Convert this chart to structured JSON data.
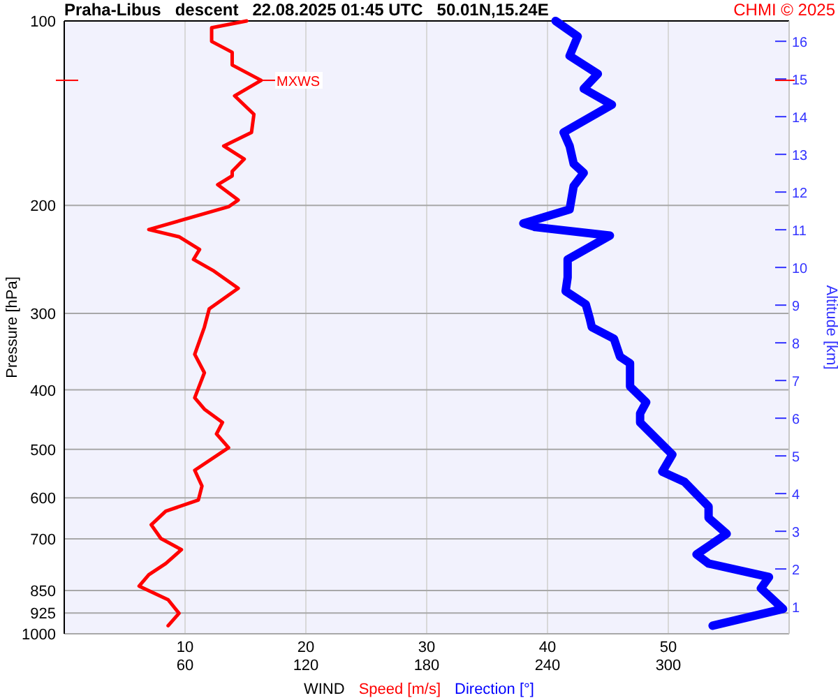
{
  "chart_data": {
    "type": "line",
    "orientation": "horizontal",
    "title": "Praha-Libus   descent   22.08.2025 01:45 UTC   50.01N,15.24E",
    "xlabel": "WIND",
    "ylabel": "Pressure [hPa]",
    "y2label": "Altitude [km]",
    "annotations": [
      "CHMI © 2025",
      {
        "text": "MXWS",
        "x": 16.3,
        "y": 125
      }
    ],
    "xlim": [
      0,
      60
    ],
    "x2lim": [
      0,
      360
    ],
    "xticks": [
      10,
      20,
      30,
      40,
      50
    ],
    "x2ticks": [
      60,
      120,
      180,
      240,
      300
    ],
    "ylim": [
      1000,
      100
    ],
    "yticks": [
      100,
      200,
      300,
      400,
      500,
      600,
      700,
      850,
      925,
      1000
    ],
    "y2lim": [
      0.28,
      16.54
    ],
    "y2ticks": [
      16,
      15,
      14,
      13,
      12,
      11,
      10,
      9,
      8,
      7,
      6,
      5,
      4,
      3,
      2,
      1
    ],
    "log": "y",
    "grid": true,
    "legend": "bottom",
    "marker": "none",
    "series": [
      {
        "name": "Speed [m/s]",
        "color": "#ff0000",
        "values": [
          15.1,
          12.2,
          12.2,
          13.9,
          13.9,
          16.3,
          14.1,
          15.7,
          15.5,
          13.2,
          14.9,
          13.9,
          13.9,
          12.7,
          14.4,
          13.6,
          7.0,
          9.5,
          11.2,
          10.7,
          12.4,
          14.4,
          12.0,
          11.6,
          10.8,
          11.6,
          10.8,
          11.6,
          13.1,
          12.6,
          13.6,
          10.8,
          11.4,
          11.1,
          8.4,
          7.2,
          8.0,
          9.7,
          8.4,
          7.0,
          6.2,
          8.6,
          9.5,
          8.6
        ],
        "x": [
          100,
          102.6,
          108,
          112.5,
          118,
          125,
          132.5,
          142,
          152,
          160,
          168,
          176,
          179,
          185,
          196,
          201,
          219,
          225,
          236,
          245,
          256,
          273,
          295,
          316,
          350,
          375,
          412,
          430,
          452,
          472,
          497,
          541,
          574,
          605,
          631,
          664,
          699,
          729,
          768,
          801,
          836,
          880,
          926,
          970
        ]
      },
      {
        "name": "Direction [°]",
        "color": "#0000ff",
        "axis": "x2",
        "values": [
          244,
          255,
          251,
          265,
          258,
          272,
          248,
          251,
          253,
          258,
          253,
          251,
          228,
          234,
          271,
          250,
          250,
          249,
          259,
          261,
          262,
          273,
          276,
          281,
          281,
          289,
          286,
          286,
          302,
          297,
          308,
          320,
          320,
          329,
          314,
          320,
          350,
          346,
          357,
          322
        ],
        "x": [
          100,
          106,
          114,
          122,
          129,
          137,
          152,
          160,
          171,
          177,
          186,
          203,
          214,
          217,
          224,
          245,
          262,
          276,
          290,
          306,
          316,
          330,
          353,
          362,
          395,
          419,
          437,
          452,
          510,
          544,
          565,
          620,
          647,
          687,
          742,
          768,
          808,
          843,
          911,
          970
        ]
      }
    ]
  }
}
